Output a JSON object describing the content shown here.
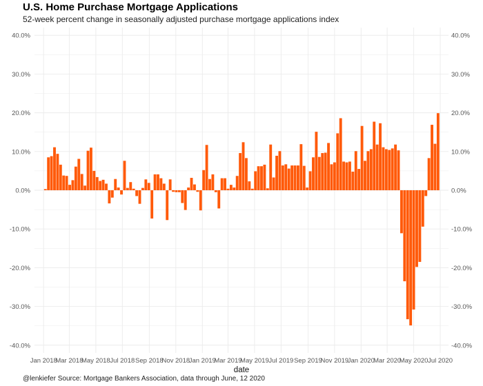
{
  "title": "U.S. Home Purchase Mortgage Applications",
  "subtitle": "52-week percent change in seasonally adjusted purchase mortgage applications index",
  "caption": "@lenkiefer Source: Mortgage Bankers Association, data through June, 12 2020",
  "colors": {
    "bar": "#ff5a0a",
    "grid": "#ebebeb",
    "text": "#555555"
  },
  "chart_data": {
    "type": "bar",
    "title": "U.S. Home Purchase Mortgage Applications",
    "subtitle": "52-week percent change in seasonally adjusted purchase mortgage applications index",
    "xlabel": "date",
    "ylabel": "",
    "ylim": [
      -42,
      42
    ],
    "y_ticks": [
      40,
      30,
      20,
      10,
      0,
      -10,
      -20,
      -30,
      -40
    ],
    "y_tick_labels": [
      "40.0%",
      "30.0%",
      "20.0%",
      "10.0%",
      "0.0%",
      "-10.0%",
      "-20.0%",
      "-30.0%",
      "-40.0%"
    ],
    "x_tick_labels": [
      "Jan 2018",
      "Mar 2018",
      "May 2018",
      "Jul 2018",
      "Sep 2018",
      "Nov 2018",
      "Jan 2019",
      "Mar 2019",
      "May 2019",
      "Jul 2019",
      "Sep 2019",
      "Nov 2019",
      "Jan 2020",
      "Mar 2020",
      "May 2020",
      "Jul 2020"
    ],
    "x_range": [
      "2017-12-11",
      "2020-07-20"
    ],
    "grid": true,
    "secondary_y_axis": true,
    "series": [
      {
        "start_date": "2018-01-05",
        "frequency": "weekly",
        "values": [
          0.3,
          8.5,
          8.8,
          11.1,
          9.4,
          6.6,
          3.8,
          3.7,
          1.4,
          2.6,
          6.1,
          8.1,
          4.2,
          1.2,
          10.2,
          11.0,
          5.0,
          3.4,
          2.4,
          2.7,
          1.7,
          -3.4,
          -1.9,
          2.9,
          0.7,
          -1.1,
          7.6,
          0.6,
          2.1,
          0.4,
          -1.5,
          -3.5,
          0.6,
          2.8,
          1.9,
          -7.3,
          4.1,
          4.1,
          3.1,
          1.7,
          -7.7,
          2.8,
          -0.4,
          -0.5,
          -0.5,
          -3.3,
          -5.1,
          0.7,
          3.2,
          1.5,
          -0.4,
          -5.2,
          5.2,
          11.7,
          2.9,
          4.1,
          -0.5,
          -4.7,
          3.1,
          3.1,
          0.4,
          1.4,
          0.7,
          3.7,
          9.6,
          12.4,
          8.3,
          2.3,
          0.4,
          4.9,
          6.2,
          6.2,
          6.6,
          0.5,
          11.8,
          3.3,
          8.9,
          10.1,
          6.4,
          6.7,
          5.6,
          6.4,
          6.4,
          6.4,
          11.9,
          6.3,
          0.7,
          4.9,
          8.5,
          15.1,
          8.6,
          9.6,
          9.7,
          12.2,
          6.7,
          7.2,
          14.7,
          18.6,
          7.4,
          7.2,
          7.4,
          4.8,
          10.1,
          5.5,
          16.6,
          7.6,
          10.1,
          10.6,
          17.7,
          11.8,
          17.3,
          11.1,
          10.6,
          10.4,
          10.8,
          11.8,
          10.3,
          -11.1,
          -23.5,
          -33.3,
          -34.9,
          -30.8,
          -19.8,
          -18.5,
          -9.4,
          -1.5,
          8.3,
          16.9,
          12.0,
          19.9
        ]
      }
    ]
  }
}
